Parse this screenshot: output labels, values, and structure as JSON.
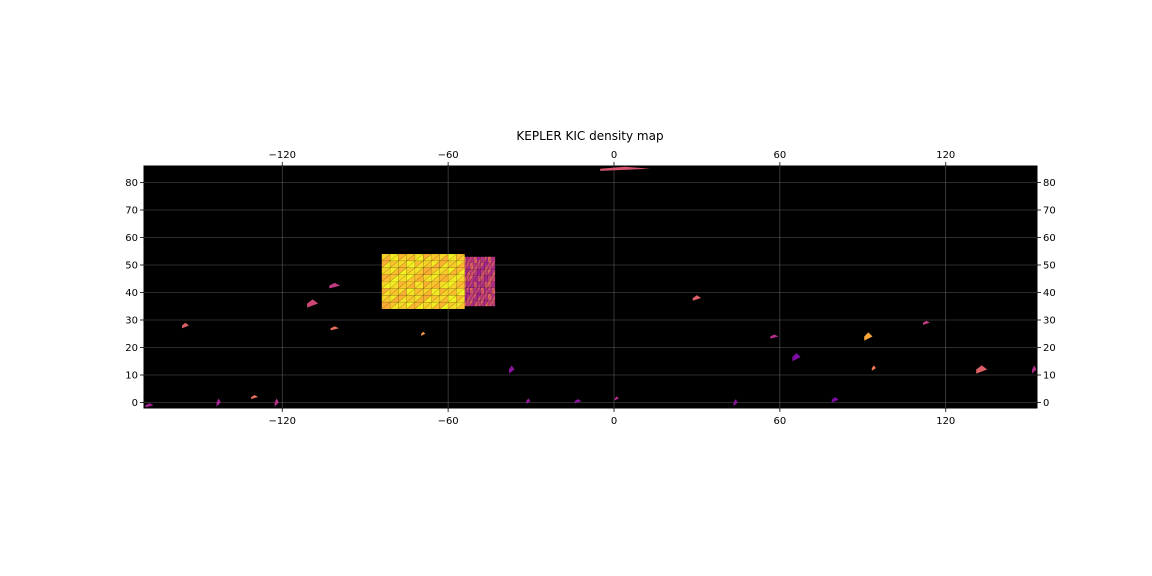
{
  "chart_data": {
    "type": "heatmap",
    "title": "KEPLER KIC density map",
    "xlabel": "",
    "ylabel": "",
    "xlim": [
      -170,
      153
    ],
    "ylim": [
      -2,
      86
    ],
    "x_ticks": [
      -120,
      -60,
      0,
      60,
      120
    ],
    "x_tick_labels": [
      "−120",
      "−60",
      "0",
      "60",
      "120"
    ],
    "y_ticks": [
      0,
      10,
      20,
      30,
      40,
      50,
      60,
      70,
      80
    ],
    "y_tick_labels": [
      "0",
      "10",
      "20",
      "30",
      "40",
      "50",
      "60",
      "70",
      "80"
    ],
    "grid": true,
    "background": "#000000",
    "colormap": "plasma",
    "colors": {
      "low": "#5c01a6",
      "mid_low": "#9c179e",
      "mid": "#cc4778",
      "mid_high": "#ed7953",
      "high": "#fdb42f",
      "peak": "#f0f921"
    },
    "main_field": {
      "lon_range": [
        -84,
        -54
      ],
      "lat_range": [
        34,
        54
      ],
      "density": "high"
    },
    "secondary_field": {
      "lon_range": [
        -56,
        -43
      ],
      "lat_range": [
        35,
        53
      ],
      "density": "mid"
    },
    "sparse_cells": [
      {
        "lon": 4,
        "lat": 85,
        "w": 18,
        "h": 1.5,
        "density": 0.45
      },
      {
        "lon": -101,
        "lat": 42.5,
        "w": 4,
        "h": 2,
        "density": 0.35
      },
      {
        "lon": -109,
        "lat": 36,
        "w": 4,
        "h": 3,
        "density": 0.4
      },
      {
        "lon": -101,
        "lat": 27,
        "w": 3,
        "h": 1.5,
        "density": 0.55
      },
      {
        "lon": -155,
        "lat": 28,
        "w": 2.5,
        "h": 2,
        "density": 0.5
      },
      {
        "lon": -69,
        "lat": 25,
        "w": 1.5,
        "h": 1.5,
        "density": 0.7
      },
      {
        "lon": -37,
        "lat": 12,
        "w": 2,
        "h": 3,
        "density": 0.15
      },
      {
        "lon": 30,
        "lat": 38,
        "w": 3,
        "h": 2,
        "density": 0.5
      },
      {
        "lon": 58,
        "lat": 24,
        "w": 3,
        "h": 1.5,
        "density": 0.3
      },
      {
        "lon": 66,
        "lat": 16.5,
        "w": 3,
        "h": 3,
        "density": 0.1
      },
      {
        "lon": 92,
        "lat": 24,
        "w": 3,
        "h": 3,
        "density": 0.75
      },
      {
        "lon": 94,
        "lat": 12.5,
        "w": 1.5,
        "h": 2,
        "density": 0.6
      },
      {
        "lon": 113,
        "lat": 29,
        "w": 2.5,
        "h": 1.5,
        "density": 0.35
      },
      {
        "lon": 133,
        "lat": 12,
        "w": 4,
        "h": 3,
        "density": 0.5
      },
      {
        "lon": 152,
        "lat": 12,
        "w": 1.5,
        "h": 3,
        "density": 0.3
      },
      {
        "lon": -168,
        "lat": -1,
        "w": 3,
        "h": 1.5,
        "density": 0.25
      },
      {
        "lon": -143,
        "lat": 0,
        "w": 1.5,
        "h": 3,
        "density": 0.25
      },
      {
        "lon": -130,
        "lat": 2,
        "w": 2.5,
        "h": 1.5,
        "density": 0.55
      },
      {
        "lon": -122,
        "lat": 0,
        "w": 1.5,
        "h": 3,
        "density": 0.3
      },
      {
        "lon": -31,
        "lat": 0.5,
        "w": 1.5,
        "h": 2,
        "density": 0.2
      },
      {
        "lon": -13,
        "lat": 0.5,
        "w": 2.5,
        "h": 1.5,
        "density": 0.15
      },
      {
        "lon": 1,
        "lat": 1.5,
        "w": 1.5,
        "h": 1.5,
        "density": 0.3
      },
      {
        "lon": 44,
        "lat": 0,
        "w": 1.5,
        "h": 2.5,
        "density": 0.15
      },
      {
        "lon": 80,
        "lat": 1,
        "w": 2.5,
        "h": 2,
        "density": 0.1
      }
    ]
  }
}
